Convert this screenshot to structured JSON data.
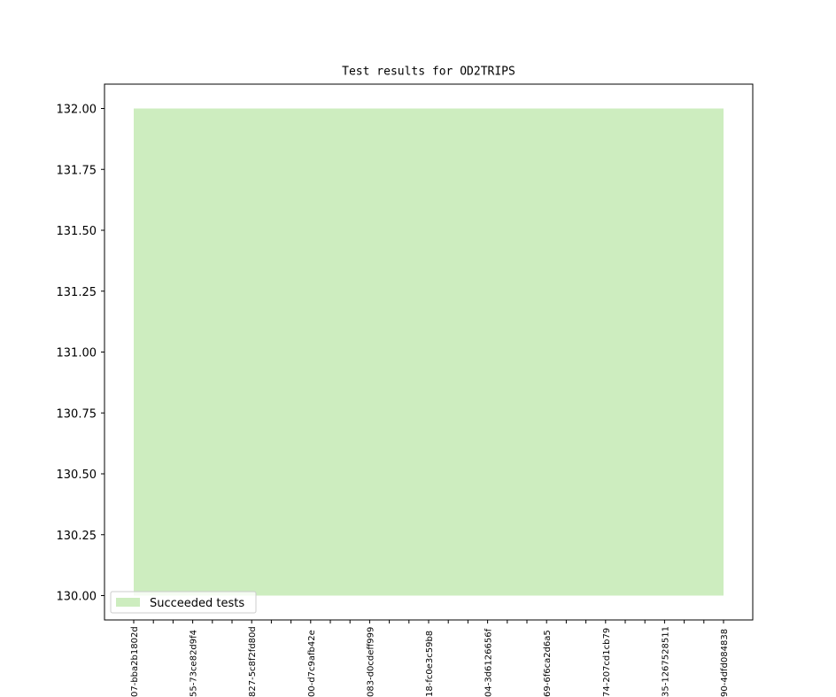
{
  "chart_data": {
    "type": "area",
    "title": "Test results for OD2TRIPS",
    "categories": [
      "07-bba2b1802d",
      null,
      null,
      "55-73ce82d9f4",
      null,
      null,
      "827-5c8f2fd80d",
      null,
      null,
      "00-d7c9afb42e",
      null,
      null,
      "083-d0cdeff999",
      null,
      null,
      "18-fc0e3c59b8",
      null,
      null,
      "04-3d6126656f",
      null,
      null,
      "69-6f6ca2d6a5",
      null,
      null,
      "74-207cd1cb79",
      null,
      null,
      "35-1267528511",
      null,
      null,
      "90-4dfd084838"
    ],
    "series": [
      {
        "name": "Succeeded tests",
        "color": "#cdedbf",
        "values": [
          132,
          132,
          132,
          132,
          132,
          132,
          132,
          132,
          132,
          132,
          132,
          132,
          132,
          132,
          132,
          132,
          132,
          132,
          132,
          132,
          132,
          132,
          132,
          132,
          132,
          132,
          132,
          132,
          132,
          132,
          132
        ]
      }
    ],
    "ylim": [
      129.9,
      132.1
    ],
    "yticks": [
      {
        "value": 130,
        "label": "130.00"
      },
      {
        "value": 130.25,
        "label": "130.25"
      },
      {
        "value": 130.5,
        "label": "130.50"
      },
      {
        "value": 130.75,
        "label": "130.75"
      },
      {
        "value": 131,
        "label": "131.00"
      },
      {
        "value": 131.25,
        "label": "131.25"
      },
      {
        "value": 131.5,
        "label": "131.50"
      },
      {
        "value": 131.75,
        "label": "131.75"
      },
      {
        "value": 132,
        "label": "132.00"
      }
    ],
    "legend": "lower left"
  }
}
